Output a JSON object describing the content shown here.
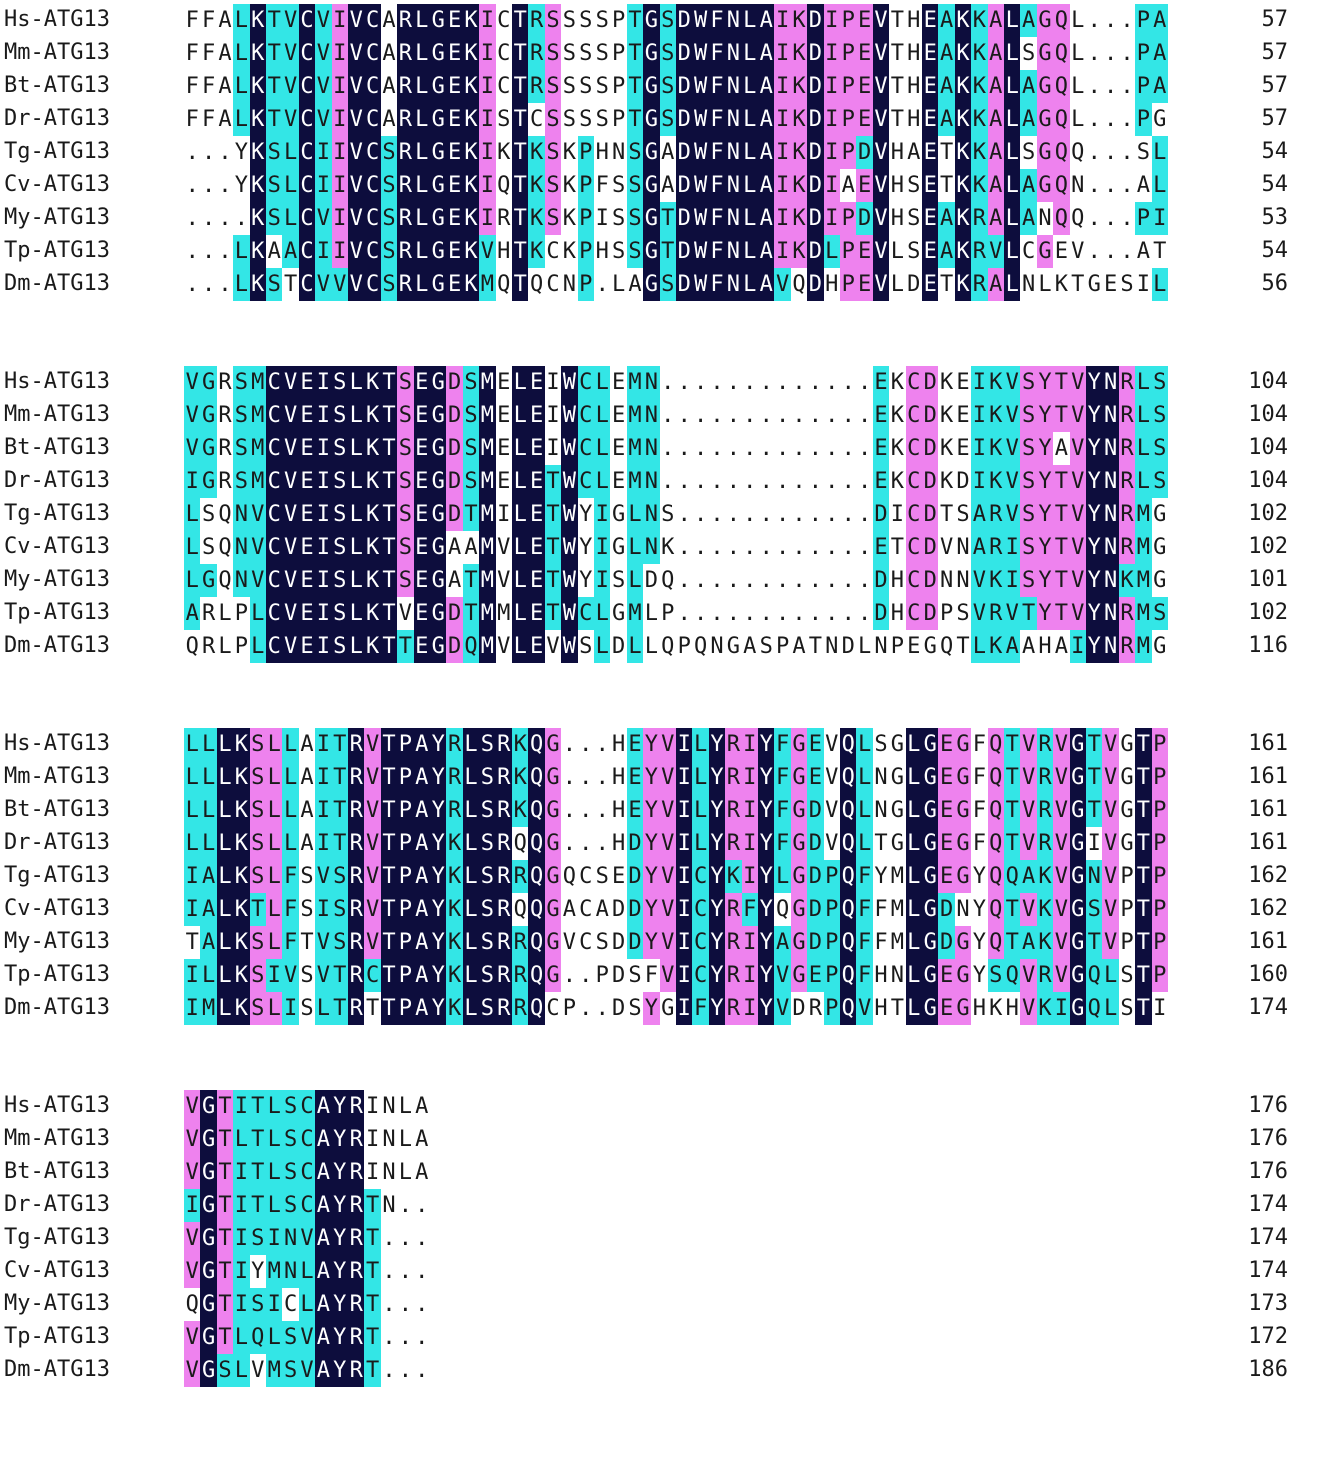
{
  "colors": {
    "identical": "#0d0d3d",
    "high_similarity": "#ee82ee",
    "moderate_similarity": "#33e6e6"
  },
  "blocks": [
    {
      "rows": [
        {
          "name": "Hs-ATG13",
          "seq": "FFALKTVCVIVCARLGEKICTRSSSSPTGSDWFNLAIKDIPEVTHEAKKALAGQL...PA",
          "end": "57"
        },
        {
          "name": "Mm-ATG13",
          "seq": "FFALKTVCVIVCARLGEKICTRSSSSPTGSDWFNLAIKDIPEVTHEAKKALSGQL...PA",
          "end": "57"
        },
        {
          "name": "Bt-ATG13",
          "seq": "FFALKTVCVIVCARLGEKICTRSSSSPTGSDWFNLAIKDIPEVTHEAKKALAGQL...PA",
          "end": "57"
        },
        {
          "name": "Dr-ATG13",
          "seq": "FFALKTVCVIVCARLGEKISTCSSSSPTGSDWFNLAIKDIPEVTHEAKKALAGQL...PG",
          "end": "57"
        },
        {
          "name": "Tg-ATG13",
          "seq": "...YKSLCIIVCSRLGEKIKTKSKPHNSGADWFNLAIKDIPDVHAETKKALSGQQ...SL",
          "end": "54"
        },
        {
          "name": "Cv-ATG13",
          "seq": "...YKSLCIIVCSRLGEKIQTKSKPFSSGADWFNLAIKDIAEVHSETKKALAGQN...AL",
          "end": "54"
        },
        {
          "name": "My-ATG13",
          "seq": "....KSLCVIVCSRLGEKIRTKSKPISSGTDWFNLAIKDIPDVHSEAKRALANQQ...PI",
          "end": "53"
        },
        {
          "name": "Tp-ATG13",
          "seq": "...LKAACIIVCSRLGEKVHTKCKPHSSGTDWFNLAIKDLPEVLSEAKRVLCGEV...AT",
          "end": "54"
        },
        {
          "name": "Dm-ATG13",
          "seq": "...LKSTCVVVCSRLGEKMQTQCNP.LAGSDWFNLAVQDHPEVLDETKRALNLKTGESIL",
          "end": "56"
        }
      ]
    },
    {
      "rows": [
        {
          "name": "Hs-ATG13",
          "seq": "VGRSMCVEISLKTSEGDSMELEIWCLEMN.............EKCDKEIKVSYTVYNRLS",
          "end": "104"
        },
        {
          "name": "Mm-ATG13",
          "seq": "VGRSMCVEISLKTSEGDSMELEIWCLEMN.............EKCDKEIKVSYTVYNRLS",
          "end": "104"
        },
        {
          "name": "Bt-ATG13",
          "seq": "VGRSMCVEISLKTSEGDSMELEIWCLEMN.............EKCDKEIKVSYAVYNRLS",
          "end": "104"
        },
        {
          "name": "Dr-ATG13",
          "seq": "IGRSMCVEISLKTSEGDSMELETWCLEMN.............EKCDKDIKVSYTVYNRLS",
          "end": "104"
        },
        {
          "name": "Tg-ATG13",
          "seq": "LSQNVCVEISLKTSEGDTMILETWYIGLNS............DICDTSARVSYTVYNRMG",
          "end": "102"
        },
        {
          "name": "Cv-ATG13",
          "seq": "LSQNVCVEISLKTSEGAAMVLETWYIGLNK............ETCDVNARISYTVYNRMG",
          "end": "102"
        },
        {
          "name": "My-ATG13",
          "seq": "LGQNVCVEISLKTSEGATMVLETWYISLDQ............DHCDNNVKISYTVYNKMG",
          "end": "101"
        },
        {
          "name": "Tp-ATG13",
          "seq": "ARLPLCVEISLKTVEGDTMMLETWCLGMLP............DHCDPSVRVTYTVYNRMS",
          "end": "102"
        },
        {
          "name": "Dm-ATG13",
          "seq": "QRLPLCVEISLKTTEGDQMVLEVWSLDLLQPQNGASPATNDLNPEGQTLKAAHAIYNRMG",
          "end": "116"
        }
      ]
    },
    {
      "rows": [
        {
          "name": "Hs-ATG13",
          "seq": "LLLKSLLAITRVTPAYRLSRKQG...HEYVILYRIYFGEVQLSGLGEGFQTVRVGTVGTP",
          "end": "161"
        },
        {
          "name": "Mm-ATG13",
          "seq": "LLLKSLLAITRVTPAYRLSRKQG...HEYVILYRIYFGEVQLNGLGEGFQTVRVGTVGTP",
          "end": "161"
        },
        {
          "name": "Bt-ATG13",
          "seq": "LLLKSLLAITRVTPAYRLSRKQG...HEYVILYRIYFGDVQLNGLGEGFQTVRVGTVGTP",
          "end": "161"
        },
        {
          "name": "Dr-ATG13",
          "seq": "LLLKSLLAITRVTPAYKLSRQQG...HDYVILYRIYFGDVQLTGLGEGFQTVRVGIVGTP",
          "end": "161"
        },
        {
          "name": "Tg-ATG13",
          "seq": "IALKSLFSVSRVTPAYKLSRRQGQCSEDYVICYKIYLGDPQFYMLGEGYQQAKVGNVPTP",
          "end": "162"
        },
        {
          "name": "Cv-ATG13",
          "seq": "IALKTLFSISRVTPAYKLSRQQGACADDYVICYRFYQGDPQFFMLGDNYQTVKVGSVPTP",
          "end": "162"
        },
        {
          "name": "My-ATG13",
          "seq": "TALKSLFTVSRVTPAYKLSRRQGVCSDDYVICYRIYAGDPQFFMLGDGYQTAKVGTVPTP",
          "end": "161"
        },
        {
          "name": "Tp-ATG13",
          "seq": "ILLKSIVSVTRCTPAYKLSRRQG..PDSFVICYRIYVGEPQFHNLGEGYSQVRVGQLSTP",
          "end": "160"
        },
        {
          "name": "Dm-ATG13",
          "seq": "IMLKSLISLTRTTPAYKLSRRQCP..DSYGIFYRIYVDRPQVHTLGEGHKHVKIGQLSTI",
          "end": "174"
        }
      ]
    },
    {
      "rows": [
        {
          "name": "Hs-ATG13",
          "seq": "VGTITLSCAYRINLA",
          "end": "176"
        },
        {
          "name": "Mm-ATG13",
          "seq": "VGTLTLSCAYRINLA",
          "end": "176"
        },
        {
          "name": "Bt-ATG13",
          "seq": "VGTITLSCAYRINLA",
          "end": "176"
        },
        {
          "name": "Dr-ATG13",
          "seq": "IGTITLSCAYRTN..",
          "end": "174"
        },
        {
          "name": "Tg-ATG13",
          "seq": "VGTISINVAYRT...",
          "end": "174"
        },
        {
          "name": "Cv-ATG13",
          "seq": "VGTIYMNLAYRT...",
          "end": "174"
        },
        {
          "name": "My-ATG13",
          "seq": "QGTISICLAYRT...",
          "end": "173"
        },
        {
          "name": "Tp-ATG13",
          "seq": "VGTLQLSVAYRT...",
          "end": "172"
        },
        {
          "name": "Dm-ATG13",
          "seq": "VGSLVMSVAYRT...",
          "end": "186"
        }
      ]
    }
  ]
}
